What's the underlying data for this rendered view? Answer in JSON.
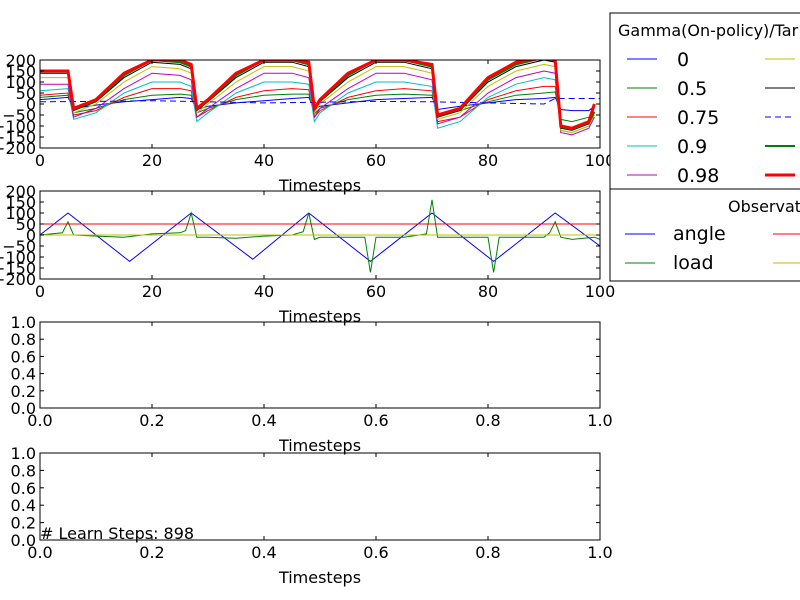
{
  "chart_data": [
    {
      "type": "line",
      "xlabel": "Timesteps",
      "xlim": [
        0,
        100
      ],
      "ylim": [
        -200,
        200
      ],
      "xticks": [
        0,
        20,
        40,
        60,
        80,
        100
      ],
      "yticks": [
        200,
        150,
        100,
        50,
        0,
        -50,
        -100,
        -150,
        -200
      ],
      "legend": {
        "title": "Gamma(On-policy)/Tar",
        "placement": "outside-right",
        "entries": [
          "0",
          "0.5",
          "0.75",
          "0.9",
          "0.98"
        ]
      },
      "series": [
        {
          "name": "0",
          "color": "#0000ff",
          "style": "solid",
          "width": 1,
          "x": [
            0,
            5,
            6,
            10,
            15,
            20,
            25,
            27,
            28,
            30,
            35,
            40,
            45,
            48,
            49,
            50,
            55,
            60,
            65,
            70,
            71,
            75,
            80,
            85,
            90,
            92,
            93,
            95,
            98,
            99
          ],
          "values": [
            20,
            30,
            -20,
            -5,
            10,
            20,
            30,
            25,
            -25,
            -10,
            5,
            15,
            25,
            30,
            -25,
            -10,
            5,
            20,
            25,
            30,
            -25,
            -10,
            5,
            20,
            25,
            30,
            -25,
            -30,
            -30,
            -10
          ]
        },
        {
          "name": "0.5",
          "color": "#008000",
          "style": "solid",
          "width": 1,
          "x": [
            0,
            5,
            6,
            10,
            15,
            20,
            25,
            27,
            28,
            30,
            35,
            40,
            45,
            48,
            49,
            50,
            55,
            60,
            65,
            70,
            71,
            75,
            80,
            85,
            90,
            92,
            93,
            95,
            98,
            99
          ],
          "values": [
            30,
            40,
            -40,
            -20,
            20,
            40,
            45,
            40,
            -40,
            -20,
            20,
            40,
            45,
            45,
            -45,
            -20,
            20,
            40,
            45,
            40,
            -50,
            -30,
            10,
            40,
            50,
            55,
            -70,
            -80,
            -60,
            -40
          ]
        },
        {
          "name": "0.75",
          "color": "#ff0000",
          "style": "solid",
          "width": 1,
          "x": [
            0,
            5,
            6,
            10,
            15,
            20,
            25,
            27,
            28,
            30,
            35,
            40,
            45,
            48,
            49,
            50,
            55,
            60,
            65,
            70,
            71,
            75,
            80,
            85,
            90,
            92,
            93,
            95,
            98,
            99
          ],
          "values": [
            40,
            50,
            -50,
            -30,
            30,
            70,
            70,
            60,
            -60,
            -30,
            30,
            60,
            70,
            65,
            -60,
            -30,
            30,
            60,
            70,
            60,
            -80,
            -60,
            20,
            60,
            80,
            80,
            -100,
            -110,
            -90,
            -50
          ]
        },
        {
          "name": "0.9",
          "color": "#00bfbf",
          "style": "solid",
          "width": 1,
          "x": [
            0,
            5,
            6,
            10,
            15,
            20,
            25,
            27,
            28,
            30,
            35,
            40,
            45,
            48,
            49,
            50,
            55,
            60,
            65,
            70,
            71,
            75,
            80,
            85,
            90,
            92,
            93,
            95,
            98,
            99
          ],
          "values": [
            60,
            70,
            -70,
            -40,
            50,
            100,
            100,
            80,
            -80,
            -40,
            50,
            100,
            100,
            90,
            -80,
            -40,
            50,
            100,
            100,
            80,
            -110,
            -80,
            30,
            90,
            120,
            110,
            -120,
            -130,
            -100,
            -60
          ]
        },
        {
          "name": "0.98",
          "color": "#bf00bf",
          "style": "solid",
          "width": 1,
          "x": [
            0,
            5,
            6,
            10,
            15,
            20,
            25,
            27,
            28,
            30,
            35,
            40,
            45,
            48,
            49,
            50,
            55,
            60,
            65,
            70,
            71,
            75,
            80,
            85,
            90,
            92,
            93,
            95,
            98,
            99
          ],
          "values": [
            90,
            90,
            -60,
            -20,
            70,
            140,
            130,
            110,
            -60,
            -20,
            70,
            140,
            140,
            120,
            -60,
            -20,
            70,
            140,
            140,
            110,
            -90,
            -60,
            50,
            120,
            150,
            140,
            -130,
            -140,
            -110,
            -60
          ]
        },
        {
          "color": "#bfbf00",
          "style": "solid",
          "width": 1,
          "x": [
            0,
            5,
            6,
            10,
            15,
            20,
            25,
            27,
            28,
            30,
            35,
            40,
            45,
            48,
            49,
            50,
            55,
            60,
            65,
            70,
            71,
            75,
            80,
            85,
            90,
            92,
            93,
            95,
            98,
            99
          ],
          "values": [
            120,
            120,
            -40,
            0,
            100,
            170,
            160,
            140,
            -40,
            0,
            100,
            170,
            170,
            150,
            -40,
            0,
            100,
            170,
            170,
            140,
            -70,
            -40,
            80,
            150,
            180,
            170,
            -120,
            -130,
            -100,
            -50
          ]
        },
        {
          "color": "#000000",
          "style": "solid",
          "width": 1,
          "x": [
            0,
            5,
            6,
            10,
            15,
            20,
            25,
            27,
            28,
            30,
            35,
            40,
            45,
            48,
            49,
            50,
            55,
            60,
            65,
            70,
            71,
            75,
            80,
            85,
            90,
            92,
            93,
            95,
            98,
            99
          ],
          "values": [
            140,
            140,
            -30,
            10,
            120,
            190,
            180,
            160,
            -30,
            10,
            120,
            190,
            190,
            170,
            -30,
            10,
            120,
            190,
            190,
            160,
            -60,
            -30,
            100,
            170,
            200,
            190,
            -110,
            -120,
            -90,
            -40
          ]
        },
        {
          "color": "#0000ff",
          "style": "dashed",
          "width": 1,
          "x": [
            0,
            10,
            20,
            30,
            40,
            50,
            60,
            70,
            80,
            90,
            92,
            100
          ],
          "values": [
            10,
            12,
            15,
            10,
            5,
            8,
            12,
            10,
            5,
            0,
            25,
            25
          ]
        },
        {
          "color": "#008000",
          "style": "solid",
          "width": 2,
          "x": [
            0,
            5,
            6,
            10,
            15,
            20,
            25,
            27,
            28,
            30,
            35,
            40,
            45,
            48,
            49,
            50,
            55,
            60,
            65,
            70,
            71,
            75,
            80,
            85,
            90,
            92,
            93,
            95,
            98,
            99
          ],
          "values": [
            150,
            150,
            -25,
            15,
            130,
            200,
            190,
            170,
            -25,
            15,
            130,
            200,
            200,
            180,
            -25,
            15,
            130,
            200,
            200,
            170,
            -55,
            -25,
            110,
            180,
            210,
            200,
            -105,
            -115,
            -85,
            -35
          ]
        },
        {
          "color": "#ff0000",
          "style": "solid",
          "width": 3,
          "x": [
            0,
            5,
            6,
            10,
            15,
            20,
            25,
            27,
            28,
            30,
            35,
            40,
            45,
            48,
            49,
            50,
            55,
            60,
            65,
            70,
            71,
            75,
            80,
            85,
            90,
            92,
            93,
            95,
            98,
            99
          ],
          "values": [
            150,
            150,
            -20,
            20,
            140,
            200,
            200,
            180,
            -20,
            20,
            140,
            200,
            200,
            190,
            -20,
            20,
            140,
            200,
            200,
            180,
            -50,
            -20,
            120,
            190,
            210,
            200,
            -100,
            -110,
            -80,
            0
          ]
        }
      ]
    },
    {
      "type": "line",
      "xlabel": "Timesteps",
      "xlim": [
        0,
        100
      ],
      "ylim": [
        -200,
        200
      ],
      "xticks": [
        0,
        20,
        40,
        60,
        80,
        100
      ],
      "yticks": [
        200,
        150,
        100,
        50,
        0,
        -50,
        -100,
        -150,
        -200
      ],
      "legend": {
        "title": "Observat",
        "placement": "outside-right",
        "entries": [
          "angle",
          "load"
        ]
      },
      "series": [
        {
          "name": "angle",
          "color": "#0000ff",
          "style": "solid",
          "width": 1,
          "x": [
            0,
            5,
            16,
            27,
            38,
            48,
            59,
            70,
            81,
            92,
            100
          ],
          "values": [
            0,
            100,
            -120,
            100,
            -110,
            100,
            -120,
            100,
            -120,
            100,
            -50
          ]
        },
        {
          "name": "load",
          "color": "#008000",
          "style": "solid",
          "width": 1,
          "x": [
            0,
            4,
            5,
            6,
            10,
            15,
            20,
            25,
            26,
            27,
            28,
            30,
            35,
            40,
            45,
            47,
            48,
            49,
            50,
            55,
            58,
            59,
            60,
            65,
            69,
            70,
            71,
            75,
            80,
            81,
            82,
            85,
            90,
            91,
            92,
            93,
            95,
            99,
            100
          ],
          "values": [
            0,
            10,
            60,
            0,
            -5,
            -10,
            5,
            10,
            20,
            100,
            -10,
            -10,
            -15,
            -5,
            0,
            15,
            100,
            -20,
            -10,
            -10,
            -10,
            -170,
            -10,
            -10,
            5,
            160,
            -10,
            -10,
            -10,
            -170,
            -10,
            -10,
            -10,
            10,
            60,
            -10,
            -20,
            -10,
            -20
          ]
        },
        {
          "color": "#ff0000",
          "style": "solid",
          "width": 1,
          "x": [
            0,
            100
          ],
          "values": [
            50,
            50
          ]
        },
        {
          "color": "#bfbf00",
          "style": "solid",
          "width": 1,
          "x": [
            0,
            100
          ],
          "values": [
            0,
            0
          ]
        }
      ]
    },
    {
      "type": "line",
      "xlabel": "Timesteps",
      "xlim": [
        0,
        1
      ],
      "ylim": [
        0,
        1
      ],
      "xticks": [
        0.0,
        0.2,
        0.4,
        0.6,
        0.8,
        1.0
      ],
      "yticks": [
        1.0,
        0.8,
        0.6,
        0.4,
        0.2,
        0.0
      ],
      "series": []
    },
    {
      "type": "line",
      "xlabel": "Timesteps",
      "xlim": [
        0,
        1
      ],
      "ylim": [
        0,
        1
      ],
      "xticks": [
        0.0,
        0.2,
        0.4,
        0.6,
        0.8,
        1.0
      ],
      "yticks": [
        1.0,
        0.8,
        0.6,
        0.4,
        0.2,
        0.0
      ],
      "annotation": "# Learn Steps: 898",
      "series": []
    }
  ]
}
